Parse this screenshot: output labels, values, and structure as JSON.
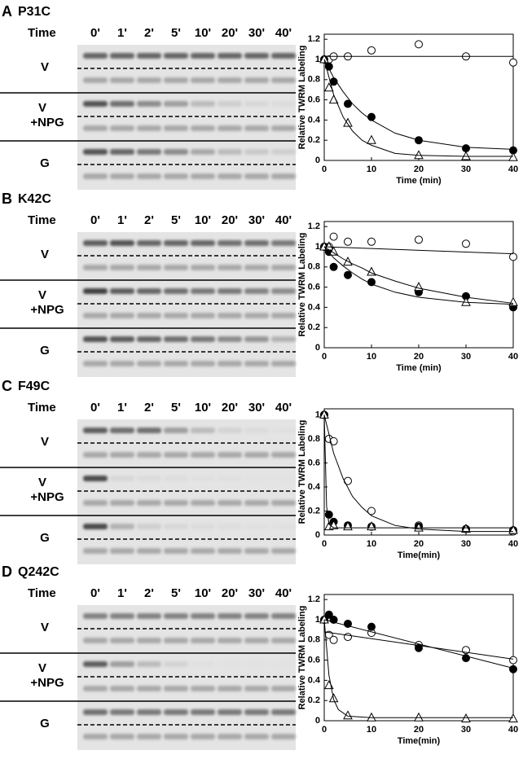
{
  "panels": [
    {
      "letter": "A",
      "name": "P31C",
      "gel": {
        "time_label": "Time",
        "lanes": [
          "0'",
          "1'",
          "2'",
          "5'",
          "10'",
          "20'",
          "30'",
          "40'"
        ],
        "rows": [
          [
            "V"
          ],
          [
            "V",
            "+NPG"
          ],
          [
            "G"
          ]
        ]
      }
    },
    {
      "letter": "B",
      "name": "K42C",
      "gel": {
        "time_label": "Time",
        "lanes": [
          "0'",
          "1'",
          "2'",
          "5'",
          "10'",
          "20'",
          "30'",
          "40'"
        ],
        "rows": [
          [
            "V"
          ],
          [
            "V",
            "+NPG"
          ],
          [
            "G"
          ]
        ]
      }
    },
    {
      "letter": "C",
      "name": "F49C",
      "gel": {
        "time_label": "Time",
        "lanes": [
          "0'",
          "1'",
          "2'",
          "5'",
          "10'",
          "20'",
          "30'",
          "40'"
        ],
        "rows": [
          [
            "V"
          ],
          [
            "V",
            "+NPG"
          ],
          [
            "G"
          ]
        ]
      }
    },
    {
      "letter": "D",
      "name": "Q242C",
      "gel": {
        "time_label": "Time",
        "lanes": [
          "0'",
          "1'",
          "2'",
          "5'",
          "10'",
          "20'",
          "30'",
          "40'"
        ],
        "rows": [
          [
            "V"
          ],
          [
            "V",
            "+NPG"
          ],
          [
            "G"
          ]
        ]
      }
    }
  ],
  "chart_data": [
    {
      "type": "scatter",
      "ylabel": "Relative TWRM Labeling",
      "xlabel": "Time (min)",
      "xlim": [
        0,
        40
      ],
      "ylim": [
        0,
        1.25
      ],
      "xticks": [
        0,
        10,
        20,
        30,
        40
      ],
      "yticks": [
        0,
        0.2,
        0.4,
        0.6,
        0.8,
        1,
        1.2
      ],
      "x": [
        0,
        1,
        2,
        5,
        10,
        20,
        30,
        40
      ],
      "series": [
        {
          "marker": "open-circle",
          "color": "#000000",
          "values": [
            1.0,
            1.0,
            1.03,
            1.03,
            1.09,
            1.15,
            1.03,
            0.97
          ]
        },
        {
          "marker": "filled-circle",
          "color": "#000000",
          "values": [
            1.0,
            0.93,
            0.78,
            0.56,
            0.43,
            0.2,
            0.12,
            0.1
          ]
        },
        {
          "marker": "open-triangle",
          "color": "#000000",
          "values": [
            1.0,
            0.72,
            0.6,
            0.37,
            0.2,
            0.05,
            0.04,
            0.03
          ]
        },
        {
          "style": "line",
          "color": "#000000",
          "x": [
            0,
            40
          ],
          "values": [
            1.03,
            1.03
          ]
        },
        {
          "style": "line",
          "color": "#000000",
          "x": [
            0,
            2,
            4,
            6,
            8,
            10,
            15,
            20,
            30,
            40
          ],
          "values": [
            1.0,
            0.82,
            0.68,
            0.56,
            0.47,
            0.4,
            0.27,
            0.2,
            0.13,
            0.11
          ]
        },
        {
          "style": "line",
          "color": "#000000",
          "x": [
            0,
            2,
            4,
            6,
            8,
            10,
            15,
            20,
            30,
            40
          ],
          "values": [
            1.0,
            0.65,
            0.43,
            0.29,
            0.2,
            0.15,
            0.07,
            0.05,
            0.04,
            0.04
          ]
        }
      ]
    },
    {
      "type": "scatter",
      "ylabel": "Relative TWRM Labeling",
      "xlabel": "Time (min)",
      "xlim": [
        0,
        40
      ],
      "ylim": [
        0,
        1.25
      ],
      "xticks": [
        0,
        10,
        20,
        30,
        40
      ],
      "yticks": [
        0,
        0.2,
        0.4,
        0.6,
        0.8,
        1,
        1.2
      ],
      "x": [
        0,
        1,
        2,
        5,
        10,
        20,
        30,
        40
      ],
      "series": [
        {
          "marker": "open-circle",
          "color": "#000000",
          "values": [
            1.0,
            1.0,
            1.1,
            1.05,
            1.05,
            1.07,
            1.03,
            0.9
          ]
        },
        {
          "marker": "filled-circle",
          "color": "#000000",
          "values": [
            1.0,
            0.95,
            0.8,
            0.72,
            0.65,
            0.55,
            0.51,
            0.4
          ]
        },
        {
          "marker": "open-triangle",
          "color": "#000000",
          "values": [
            1.0,
            1.0,
            0.95,
            0.85,
            0.75,
            0.6,
            0.45,
            0.45
          ]
        },
        {
          "style": "line",
          "color": "#000000",
          "x": [
            0,
            40
          ],
          "values": [
            1.0,
            0.93
          ]
        },
        {
          "style": "line",
          "color": "#000000",
          "x": [
            0,
            2,
            4,
            6,
            8,
            10,
            15,
            20,
            30,
            40
          ],
          "values": [
            1.0,
            0.89,
            0.81,
            0.74,
            0.68,
            0.63,
            0.55,
            0.5,
            0.45,
            0.43
          ]
        },
        {
          "style": "line",
          "color": "#000000",
          "x": [
            0,
            2,
            4,
            6,
            8,
            10,
            15,
            20,
            30,
            40
          ],
          "values": [
            1.0,
            0.94,
            0.88,
            0.83,
            0.79,
            0.74,
            0.66,
            0.59,
            0.5,
            0.44
          ]
        }
      ]
    },
    {
      "type": "scatter",
      "ylabel": "Relative TWRM Labeling",
      "xlabel": "Time(min)",
      "xlim": [
        0,
        40
      ],
      "ylim": [
        0,
        1.05
      ],
      "xticks": [
        0,
        10,
        20,
        30,
        40
      ],
      "yticks": [
        0,
        0.2,
        0.4,
        0.6,
        0.8,
        1
      ],
      "x": [
        0,
        1,
        2,
        5,
        10,
        20,
        30,
        40
      ],
      "series": [
        {
          "marker": "open-circle",
          "color": "#000000",
          "values": [
            1.0,
            0.8,
            0.78,
            0.45,
            0.2,
            0.08,
            0.05,
            0.03
          ]
        },
        {
          "marker": "filled-circle",
          "color": "#000000",
          "values": [
            1.0,
            0.17,
            0.11,
            0.08,
            0.07,
            0.07,
            0.05,
            0.04
          ]
        },
        {
          "marker": "open-triangle",
          "color": "#000000",
          "values": [
            1.0,
            0.07,
            0.08,
            0.07,
            0.07,
            0.06,
            0.05,
            0.04
          ]
        },
        {
          "style": "line",
          "color": "#000000",
          "x": [
            0,
            2,
            4,
            6,
            8,
            10,
            15,
            20,
            30,
            40
          ],
          "values": [
            1.0,
            0.68,
            0.47,
            0.32,
            0.23,
            0.16,
            0.08,
            0.05,
            0.03,
            0.03
          ]
        },
        {
          "style": "line",
          "color": "#000000",
          "x": [
            0,
            0.5,
            1,
            2,
            5,
            10,
            20,
            30,
            40
          ],
          "values": [
            1.0,
            0.24,
            0.09,
            0.06,
            0.06,
            0.06,
            0.06,
            0.06,
            0.06
          ]
        }
      ]
    },
    {
      "type": "scatter",
      "ylabel": "Relative TWRM Labeling",
      "xlabel": "Time(min)",
      "xlim": [
        0,
        40
      ],
      "ylim": [
        0,
        1.25
      ],
      "xticks": [
        0,
        10,
        20,
        30,
        40
      ],
      "yticks": [
        0,
        0.2,
        0.4,
        0.6,
        0.8,
        1,
        1.2
      ],
      "x": [
        0,
        1,
        2,
        5,
        10,
        20,
        30,
        40
      ],
      "series": [
        {
          "marker": "open-circle",
          "color": "#000000",
          "values": [
            1.0,
            0.85,
            0.8,
            0.83,
            0.87,
            0.75,
            0.7,
            0.6
          ]
        },
        {
          "marker": "filled-circle",
          "color": "#000000",
          "values": [
            1.0,
            1.05,
            1.0,
            0.96,
            0.93,
            0.72,
            0.62,
            0.51
          ]
        },
        {
          "marker": "open-triangle",
          "color": "#000000",
          "values": [
            1.0,
            0.35,
            0.22,
            0.05,
            0.03,
            0.03,
            0.02,
            0.02
          ]
        },
        {
          "style": "line",
          "color": "#000000",
          "x": [
            0,
            40
          ],
          "values": [
            1.0,
            0.52
          ]
        },
        {
          "style": "line",
          "color": "#000000",
          "x": [
            0,
            40
          ],
          "values": [
            0.88,
            0.61
          ]
        },
        {
          "style": "line",
          "color": "#000000",
          "x": [
            0,
            1,
            2,
            3,
            5,
            10,
            20,
            40
          ],
          "values": [
            1.0,
            0.45,
            0.21,
            0.11,
            0.045,
            0.03,
            0.03,
            0.03
          ]
        }
      ]
    }
  ]
}
